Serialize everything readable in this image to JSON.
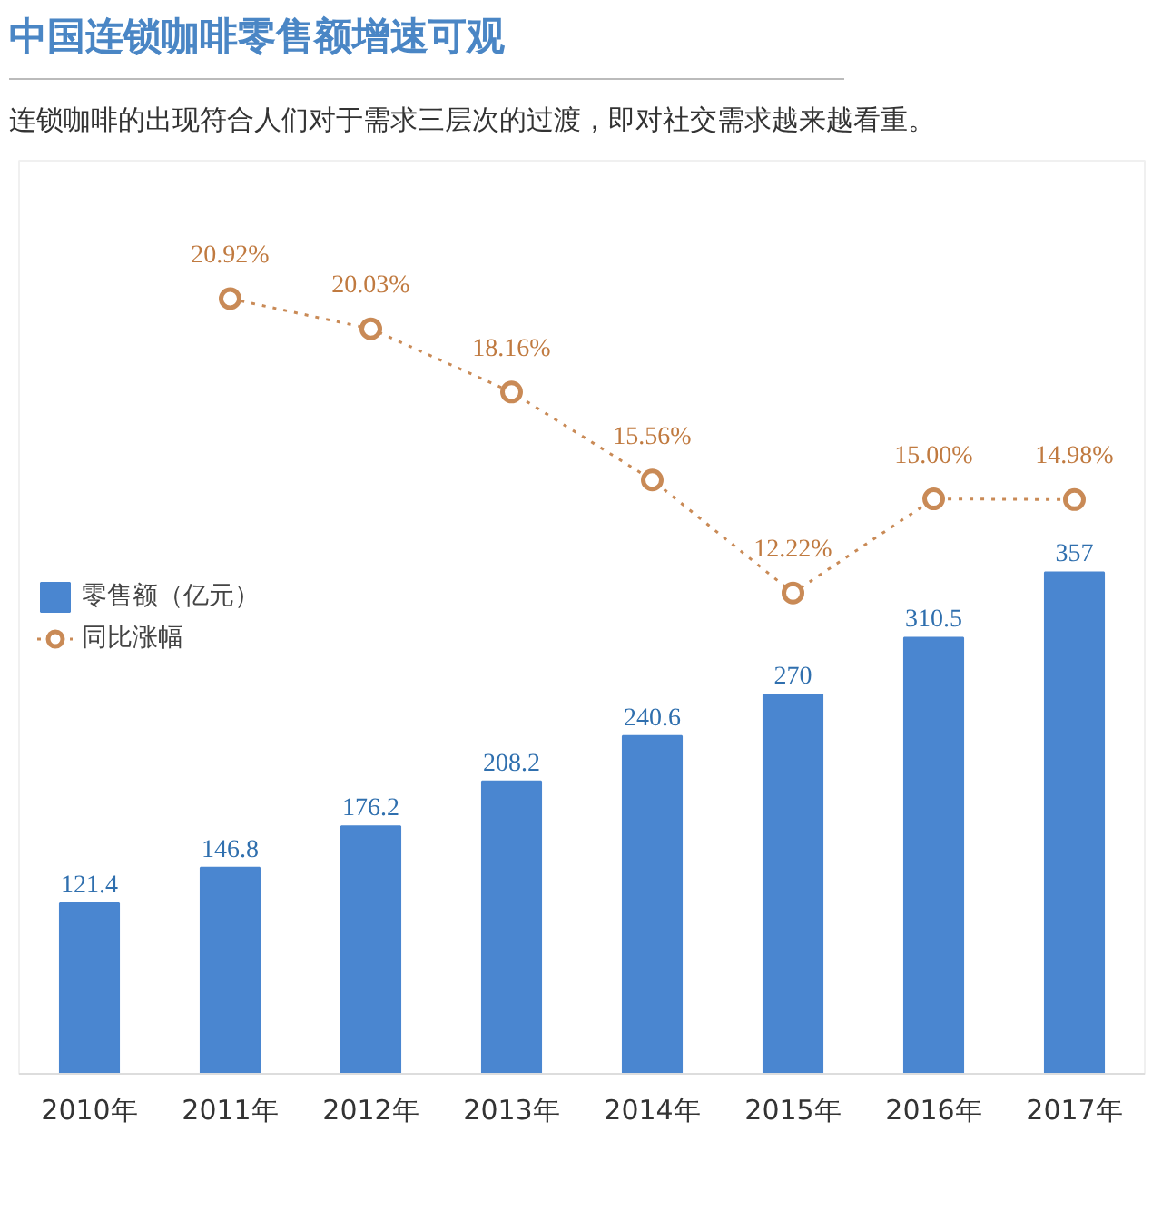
{
  "chart_data": {
    "type": "bar",
    "title": "中国连锁咖啡零售额增速可观",
    "subtitle": "连锁咖啡的出现符合人们对于需求三层次的过渡，即对社交需求越来越看重。",
    "categories": [
      "2010年",
      "2011年",
      "2012年",
      "2013年",
      "2014年",
      "2015年",
      "2016年",
      "2017年"
    ],
    "series": [
      {
        "name": "零售额（亿元）",
        "color": "#4a86d0",
        "values": [
          121.4,
          146.8,
          176.2,
          208.2,
          240.6,
          270,
          310.5,
          357
        ],
        "value_labels": [
          "121.4",
          "146.8",
          "176.2",
          "208.2",
          "240.6",
          "270",
          "310.5",
          "357"
        ]
      },
      {
        "name": "同比涨幅",
        "type": "line",
        "axis": "y2",
        "color": "#c98a56",
        "values": [
          null,
          20.92,
          20.03,
          18.16,
          15.56,
          12.22,
          15.0,
          14.98
        ],
        "value_labels": [
          null,
          "20.92%",
          "20.03%",
          "18.16%",
          "15.56%",
          "12.22%",
          "15.00%",
          "14.98%"
        ]
      }
    ],
    "ylim": [
      0,
      650
    ],
    "y2lim": [
      -2,
      25
    ],
    "tick_labels": "x",
    "grid": false,
    "legend": "left",
    "marker": "circle",
    "line_style": "dotted"
  }
}
